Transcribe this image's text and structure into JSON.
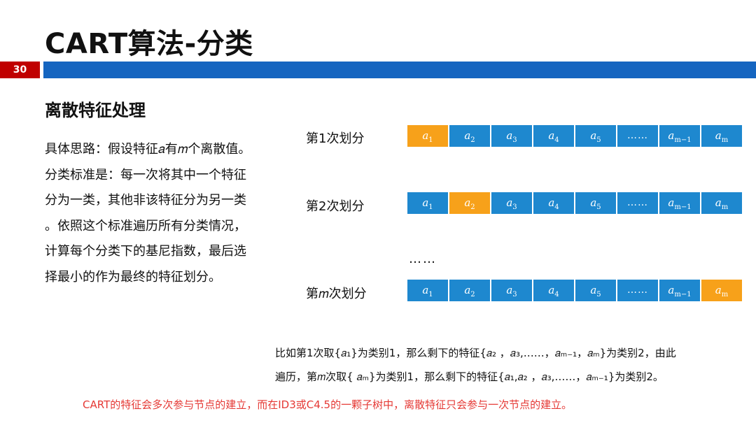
{
  "slide": {
    "title": "CART算法-分类",
    "page_number": "30"
  },
  "section_title": "离散特征处理",
  "description_lines": [
    "具体思路：假设特征𝑎有𝑚个离散值。",
    "分类标准是：每一次将其中一个特征",
    "分为一类，其他非该特征分为另一类",
    "。依照这个标准遍历所有分类情况，",
    "计算每个分类下的基尼指数，最后选",
    "择最小的作为最终的特征划分。"
  ],
  "partitions": [
    {
      "label": "第1次划分",
      "highlight_index": 0
    },
    {
      "label": "第2次划分",
      "highlight_index": 1
    },
    {
      "label": "第𝑚次划分",
      "highlight_index": 7
    }
  ],
  "cells": [
    {
      "base": "a",
      "sub": "1"
    },
    {
      "base": "a",
      "sub": "2"
    },
    {
      "base": "a",
      "sub": "3"
    },
    {
      "base": "a",
      "sub": "4"
    },
    {
      "base": "a",
      "sub": "5"
    },
    {
      "base": "……",
      "sub": ""
    },
    {
      "base": "a",
      "sub": "m−1"
    },
    {
      "base": "a",
      "sub": "m"
    }
  ],
  "ellipsis": "……",
  "example_lines": [
    "比如第1次取{𝑎₁}为类别1，那么剩下的特征{𝑎₂ ，𝑎₃,……，𝑎ₘ₋₁，𝑎ₘ}为类别2，由此",
    "遍历，第𝑚次取{ 𝑎ₘ}为类别1，那么剩下的特征{𝑎₁,𝑎₂ ，𝑎₃,……，𝑎ₘ₋₁}为类别2。"
  ],
  "note": "CART的特征会多次参与节点的建立，而在ID3或C4.5的一颗子树中，离散特征只会参与一次节点的建立。",
  "colors": {
    "cell": "#1e88cf",
    "highlight": "#f7a11a",
    "header_bar": "#1565c0",
    "page_badge": "#c00000",
    "note_text": "#e53935"
  }
}
